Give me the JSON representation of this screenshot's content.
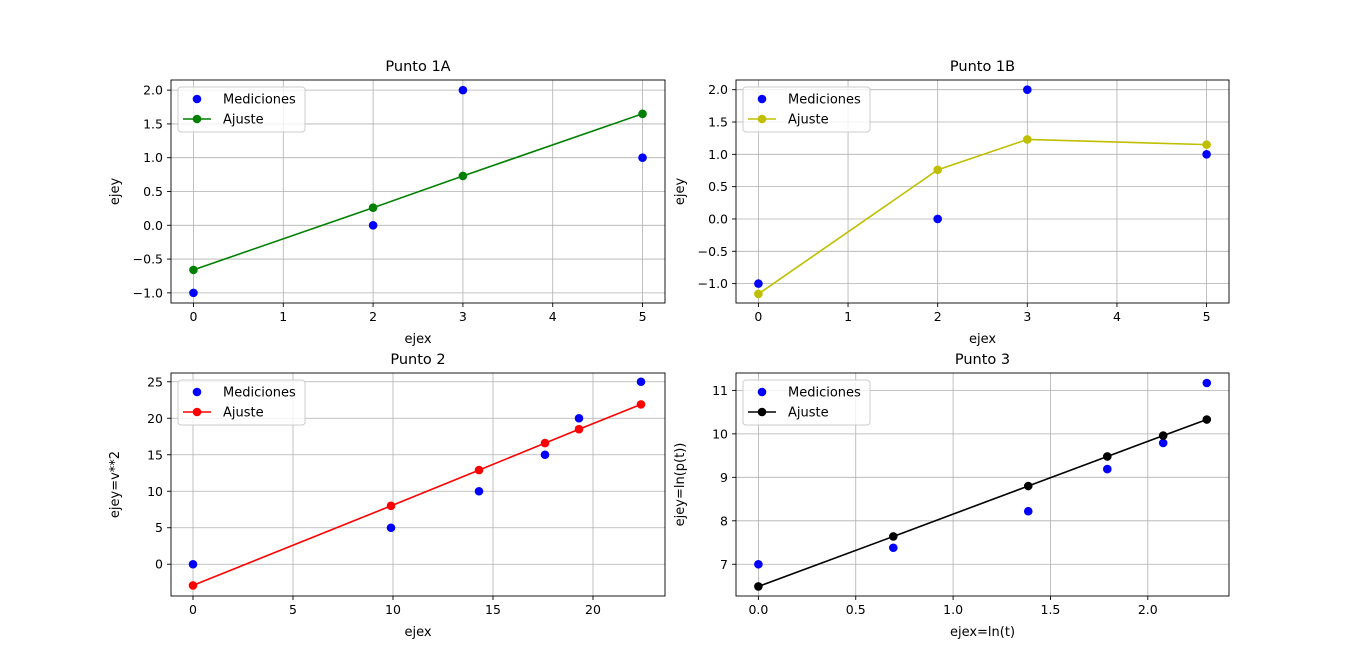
{
  "chart_data": [
    {
      "type": "line",
      "title": "Punto 1A",
      "xlabel": "ejex",
      "ylabel": "ejey",
      "xlim": [
        -0.25,
        5.25
      ],
      "ylim": [
        -1.15,
        2.15
      ],
      "xticks": [
        0,
        1,
        2,
        3,
        4,
        5
      ],
      "yticks": [
        -1.0,
        -0.5,
        0.0,
        0.5,
        1.0,
        1.5,
        2.0
      ],
      "grid": true,
      "legend_position": "top-left",
      "series": [
        {
          "name": "Mediciones",
          "kind": "scatter",
          "color": "#0000ff",
          "x": [
            0,
            2,
            3,
            5
          ],
          "y": [
            -1,
            0,
            2,
            1
          ]
        },
        {
          "name": "Ajuste",
          "kind": "line",
          "color": "#008000",
          "x": [
            0,
            2,
            3,
            5
          ],
          "y": [
            -0.66,
            0.26,
            0.73,
            1.65
          ]
        }
      ]
    },
    {
      "type": "line",
      "title": "Punto 1B",
      "xlabel": "ejex",
      "ylabel": "ejey",
      "xlim": [
        -0.25,
        5.25
      ],
      "ylim": [
        -1.3,
        2.15
      ],
      "xticks": [
        0,
        1,
        2,
        3,
        4,
        5
      ],
      "yticks": [
        -1.0,
        -0.5,
        0.0,
        0.5,
        1.0,
        1.5,
        2.0
      ],
      "grid": true,
      "legend_position": "top-left",
      "series": [
        {
          "name": "Mediciones",
          "kind": "scatter",
          "color": "#0000ff",
          "x": [
            0,
            2,
            3,
            5
          ],
          "y": [
            -1,
            0,
            2,
            1
          ]
        },
        {
          "name": "Ajuste",
          "kind": "line",
          "color": "#bfbf00",
          "x": [
            0,
            2,
            3,
            5
          ],
          "y": [
            -1.16,
            0.76,
            1.23,
            1.15
          ]
        }
      ]
    },
    {
      "type": "line",
      "title": "Punto 2",
      "xlabel": "ejex",
      "ylabel": "ejey=v**2",
      "xlim": [
        -1.1,
        23.6
      ],
      "ylim": [
        -4.35,
        26.2
      ],
      "xticks": [
        0,
        5,
        10,
        15,
        20
      ],
      "yticks": [
        0,
        5,
        10,
        15,
        20,
        25
      ],
      "grid": true,
      "legend_position": "top-left",
      "series": [
        {
          "name": "Mediciones",
          "kind": "scatter",
          "color": "#0000ff",
          "x": [
            0,
            9.9,
            14.3,
            17.6,
            19.3,
            22.4
          ],
          "y": [
            0,
            5,
            10,
            15,
            20,
            25
          ]
        },
        {
          "name": "Ajuste",
          "kind": "line",
          "color": "#ff0000",
          "x": [
            0,
            9.9,
            14.3,
            17.6,
            19.3,
            22.4
          ],
          "y": [
            -2.9,
            8.0,
            12.9,
            16.6,
            18.5,
            21.9
          ]
        }
      ]
    },
    {
      "type": "line",
      "title": "Punto 3",
      "xlabel": "ejex=ln(t)",
      "ylabel": "ejey=ln(p(t))",
      "xlim": [
        -0.115,
        2.417
      ],
      "ylim": [
        6.27,
        11.4
      ],
      "xticks": [
        0.0,
        0.5,
        1.0,
        1.5,
        2.0
      ],
      "yticks": [
        7,
        8,
        9,
        10,
        11
      ],
      "grid": true,
      "legend_position": "top-left",
      "series": [
        {
          "name": "Mediciones",
          "kind": "scatter",
          "color": "#0000ff",
          "x": [
            0,
            0.693,
            1.386,
            1.792,
            2.079,
            2.303
          ],
          "y": [
            7.0,
            7.38,
            8.22,
            9.19,
            9.79,
            11.17
          ]
        },
        {
          "name": "Ajuste",
          "kind": "line",
          "color": "#000000",
          "x": [
            0,
            0.693,
            1.386,
            1.792,
            2.079,
            2.303
          ],
          "y": [
            6.49,
            7.64,
            8.8,
            9.48,
            9.96,
            10.33
          ]
        }
      ]
    }
  ]
}
